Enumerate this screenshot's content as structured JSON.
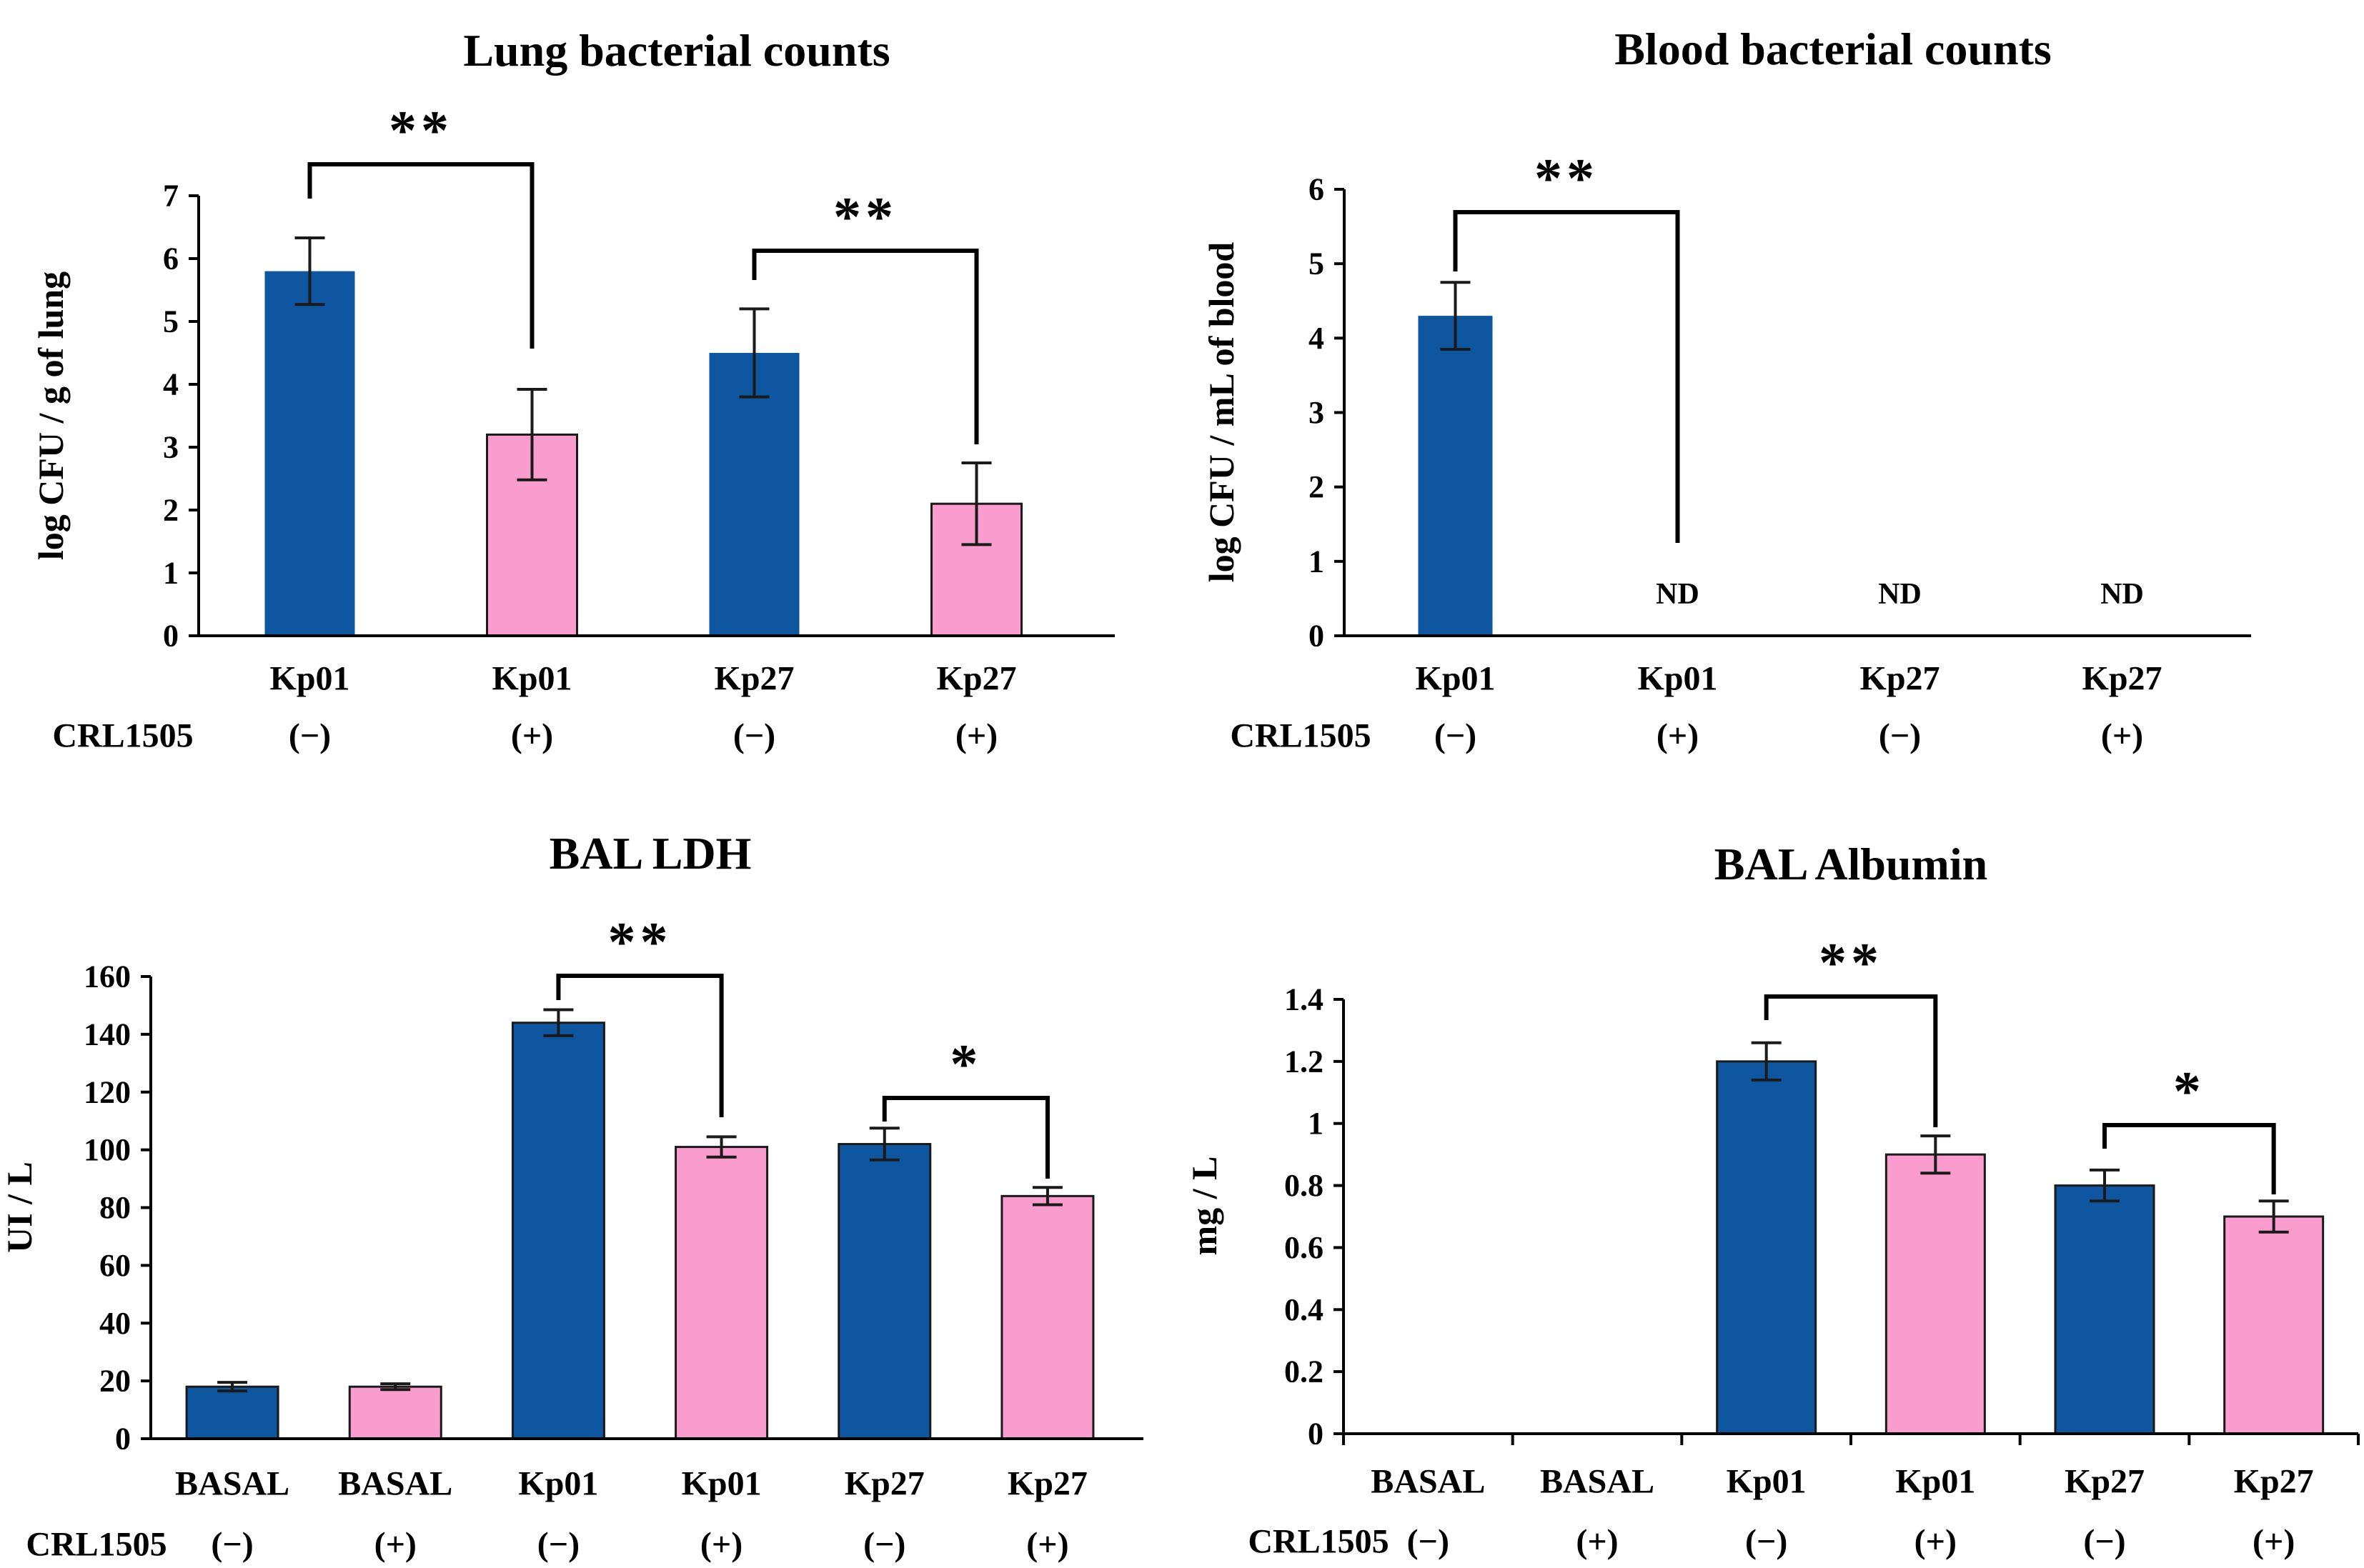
{
  "figure": {
    "crl_row_label": "CRL1505",
    "colors": {
      "blue": "#0F56A0",
      "pink": "#FB9CCE",
      "axis": "#000000",
      "error_bar": "#1a1a1a",
      "bar_outline": "#1a1a1a"
    }
  },
  "chart_data": [
    {
      "type": "bar",
      "key": "lung-bacterial-counts",
      "title": "Lung bacterial counts",
      "ylabel": "log CFU / g of lung",
      "xlabel": "",
      "ylim": [
        0,
        7
      ],
      "yticks": [
        0,
        1,
        2,
        3,
        4,
        5,
        6,
        7
      ],
      "ytick_labels": [
        "0",
        "1",
        "2",
        "3",
        "4",
        "5",
        "6",
        "7"
      ],
      "categories": [
        "Kp01",
        "Kp01",
        "Kp27",
        "Kp27"
      ],
      "crl1505": [
        "(−)",
        "(+)",
        "(−)",
        "(+)"
      ],
      "values": [
        5.8,
        3.2,
        4.5,
        2.1
      ],
      "errors": [
        0.53,
        0.72,
        0.7,
        0.65
      ],
      "series_color": [
        "blue",
        "pink",
        "blue",
        "pink"
      ],
      "nd": [
        false,
        false,
        false,
        false
      ],
      "nd_label": "ND",
      "grid": false,
      "significance": [
        {
          "from": 0,
          "to": 1,
          "label": "**"
        },
        {
          "from": 2,
          "to": 3,
          "label": "**"
        }
      ]
    },
    {
      "type": "bar",
      "key": "blood-bacterial-counts",
      "title": "Blood bacterial counts",
      "ylabel": "log CFU / mL of blood",
      "xlabel": "",
      "ylim": [
        0,
        6
      ],
      "yticks": [
        0,
        1,
        2,
        3,
        4,
        5,
        6
      ],
      "ytick_labels": [
        "0",
        "1",
        "2",
        "3",
        "4",
        "5",
        "6"
      ],
      "categories": [
        "Kp01",
        "Kp01",
        "Kp27",
        "Kp27"
      ],
      "crl1505": [
        "(−)",
        "(+)",
        "(−)",
        "(+)"
      ],
      "values": [
        4.3,
        0,
        0,
        0
      ],
      "errors": [
        0.45,
        0,
        0,
        0
      ],
      "series_color": [
        "blue",
        "pink",
        "blue",
        "pink"
      ],
      "nd": [
        false,
        true,
        true,
        true
      ],
      "nd_label": "ND",
      "grid": false,
      "significance": [
        {
          "from": 0,
          "to": 1,
          "label": "**"
        }
      ]
    },
    {
      "type": "bar",
      "key": "bal-ldh",
      "title": "BAL LDH",
      "ylabel": "UI / L",
      "xlabel": "",
      "ylim": [
        0,
        160
      ],
      "yticks": [
        0,
        20,
        40,
        60,
        80,
        100,
        120,
        140,
        160
      ],
      "ytick_labels": [
        "0",
        "20",
        "40",
        "60",
        "80",
        "100",
        "120",
        "140",
        "160"
      ],
      "categories": [
        "BASAL",
        "BASAL",
        "Kp01",
        "Kp01",
        "Kp27",
        "Kp27"
      ],
      "crl1505": [
        "(−)",
        "(+)",
        "(−)",
        "(+)",
        "(−)",
        "(+)"
      ],
      "values": [
        18,
        18,
        144,
        101,
        102,
        84
      ],
      "errors": [
        1.5,
        1,
        4.5,
        3.5,
        5.5,
        3
      ],
      "series_color": [
        "blue",
        "pink",
        "blue",
        "pink",
        "blue",
        "pink"
      ],
      "nd": [
        false,
        false,
        false,
        false,
        false,
        false
      ],
      "nd_label": "ND",
      "grid": false,
      "significance": [
        {
          "from": 2,
          "to": 3,
          "label": "**"
        },
        {
          "from": 4,
          "to": 5,
          "label": "*"
        }
      ]
    },
    {
      "type": "bar",
      "key": "bal-albumin",
      "title": "BAL Albumin",
      "ylabel": "mg / L",
      "xlabel": "",
      "ylim": [
        0,
        1.4
      ],
      "yticks": [
        0,
        0.2,
        0.4,
        0.6,
        0.8,
        1,
        1.2,
        1.4
      ],
      "ytick_labels": [
        "0",
        "0.2",
        "0.4",
        "0.6",
        "0.8",
        "1",
        "1.2",
        "1.4"
      ],
      "categories": [
        "BASAL",
        "BASAL",
        "Kp01",
        "Kp01",
        "Kp27",
        "Kp27"
      ],
      "crl1505": [
        "(−)",
        "(+)",
        "(−)",
        "(+)",
        "(−)",
        "(+)"
      ],
      "values": [
        0,
        0,
        1.2,
        0.9,
        0.8,
        0.7
      ],
      "errors": [
        0,
        0,
        0.06,
        0.06,
        0.05,
        0.05
      ],
      "series_color": [
        "blue",
        "pink",
        "blue",
        "pink",
        "blue",
        "pink"
      ],
      "nd": [
        false,
        false,
        false,
        false,
        false,
        false
      ],
      "nd_label": "ND",
      "grid": false,
      "significance": [
        {
          "from": 2,
          "to": 3,
          "label": "**"
        },
        {
          "from": 4,
          "to": 5,
          "label": "*"
        }
      ]
    }
  ]
}
